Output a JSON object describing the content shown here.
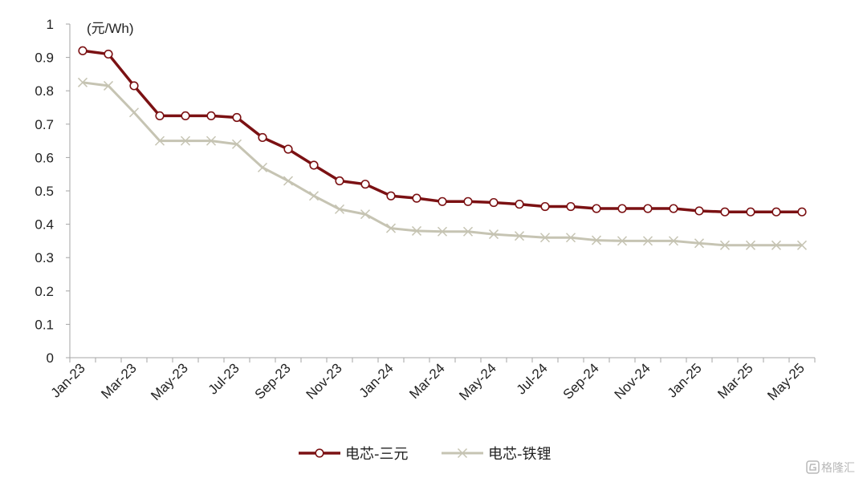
{
  "chart_data": {
    "type": "line",
    "unit_label": "(元/Wh)",
    "ylim": [
      0,
      1
    ],
    "y_ticks": [
      "0",
      "0.1",
      "0.2",
      "0.3",
      "0.4",
      "0.5",
      "0.6",
      "0.7",
      "0.8",
      "0.9",
      "1"
    ],
    "x_tick_labels": [
      "Jan-23",
      "Mar-23",
      "May-23",
      "Jul-23",
      "Sep-23",
      "Nov-23",
      "Jan-24",
      "Mar-24",
      "May-24",
      "Jul-24",
      "Sep-24",
      "Nov-24",
      "Jan-25",
      "Mar-25",
      "May-25"
    ],
    "x": [
      "2023-01-01",
      "2023-02-01",
      "2023-03-01",
      "2023-04-01",
      "2023-05-01",
      "2023-06-01",
      "2023-07-01",
      "2023-08-01",
      "2023-09-01",
      "2023-10-01",
      "2023-11-01",
      "2023-12-01",
      "2024-01-01",
      "2024-02-01",
      "2024-03-01",
      "2024-04-01",
      "2024-05-01",
      "2024-06-01",
      "2024-07-01",
      "2024-08-01",
      "2024-09-01",
      "2024-10-01",
      "2024-11-01",
      "2024-12-01",
      "2025-01-01",
      "2025-02-01",
      "2025-03-01",
      "2025-04-01",
      "2025-05-01"
    ],
    "series": [
      {
        "name": "电芯-三元",
        "color": "#7b1113",
        "marker": "circle",
        "values": [
          0.92,
          0.91,
          0.815,
          0.725,
          0.725,
          0.725,
          0.72,
          0.66,
          0.625,
          0.577,
          0.53,
          0.52,
          0.485,
          0.478,
          0.468,
          0.468,
          0.465,
          0.46,
          0.453,
          0.453,
          0.447,
          0.447,
          0.447,
          0.447,
          0.44,
          0.437,
          0.437,
          0.437,
          0.437
        ]
      },
      {
        "name": "电芯-铁锂",
        "color": "#c6c4b3",
        "marker": "x",
        "values": [
          0.825,
          0.815,
          0.735,
          0.65,
          0.65,
          0.65,
          0.64,
          0.57,
          0.53,
          0.485,
          0.445,
          0.43,
          0.388,
          0.38,
          0.378,
          0.378,
          0.37,
          0.365,
          0.36,
          0.36,
          0.352,
          0.35,
          0.35,
          0.35,
          0.343,
          0.337,
          0.337,
          0.337,
          0.337
        ]
      }
    ],
    "legend_position": "bottom-center",
    "grid": false
  },
  "watermark": {
    "icon": "gelonghui-logo-icon",
    "text": "格隆汇"
  }
}
